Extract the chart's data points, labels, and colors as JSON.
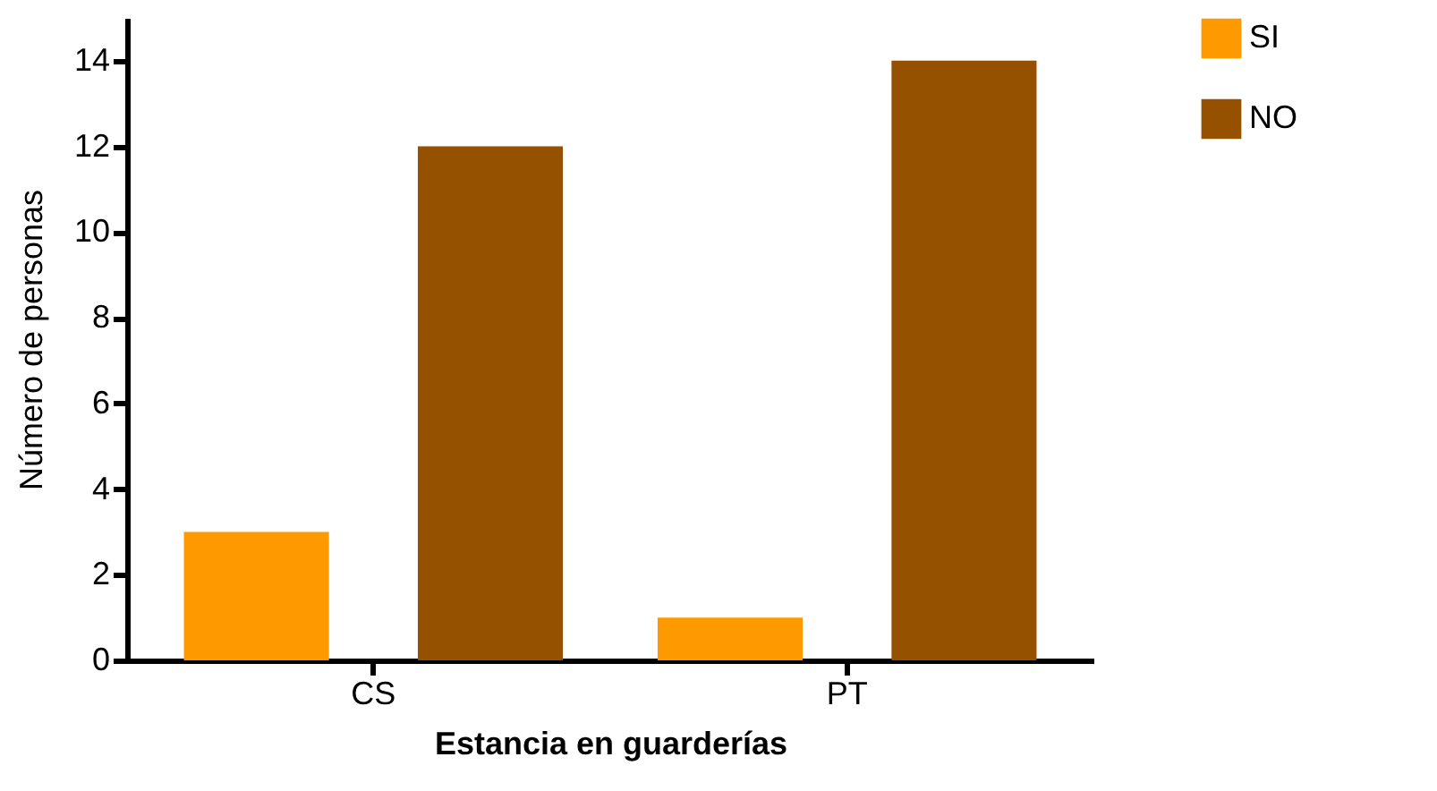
{
  "chart_data": {
    "type": "bar",
    "xlabel": "Estancia en guarderías",
    "ylabel": "Número de personas",
    "categories": [
      "CS",
      "PT"
    ],
    "series": [
      {
        "name": "SI",
        "color": "#ff9900",
        "values": [
          3,
          1
        ]
      },
      {
        "name": "NO",
        "color": "#955000",
        "values": [
          12,
          14
        ]
      }
    ],
    "ylim": [
      0,
      15
    ],
    "yticks": [
      0,
      2,
      4,
      6,
      8,
      10,
      12,
      14
    ],
    "grid": false,
    "legend": "top right"
  }
}
